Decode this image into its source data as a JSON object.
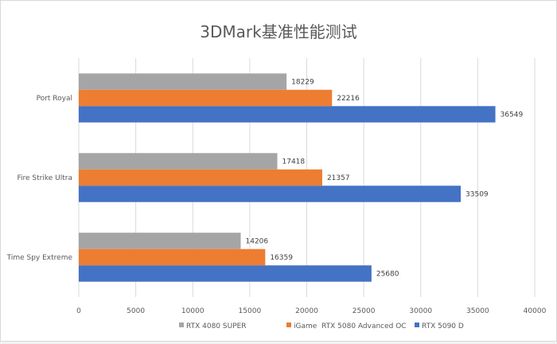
{
  "chart_data": {
    "type": "bar",
    "orientation": "horizontal",
    "title": "3DMark基准性能测试",
    "categories": [
      "Port Royal",
      "Fire Strike Ultra",
      "Time Spy Extreme"
    ],
    "series": [
      {
        "name": "RTX 4080 SUPER",
        "color": "#a5a5a5",
        "values": [
          18229,
          17418,
          14206
        ]
      },
      {
        "name": "iGame  RTX 5080 Advanced OC",
        "color": "#ed7d31",
        "values": [
          22216,
          21357,
          16359
        ]
      },
      {
        "name": "RTX 5090 D",
        "color": "#4472c4",
        "values": [
          36549,
          33509,
          25680
        ]
      }
    ],
    "xlim": [
      0,
      40000
    ],
    "xticks": [
      0,
      5000,
      10000,
      15000,
      20000,
      25000,
      30000,
      35000,
      40000
    ],
    "grid": true,
    "legend_position": "bottom"
  }
}
